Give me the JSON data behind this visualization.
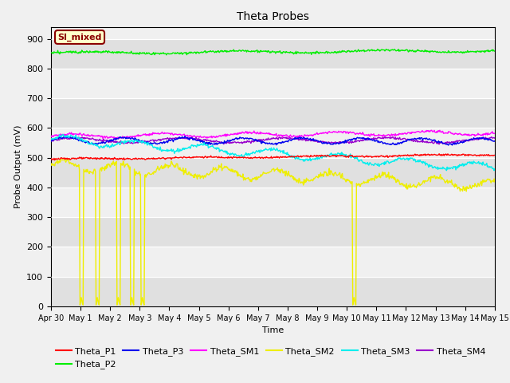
{
  "title": "Theta Probes",
  "xlabel": "Time",
  "ylabel": "Probe Output (mV)",
  "ylim": [
    0,
    940
  ],
  "yticks": [
    0,
    100,
    200,
    300,
    400,
    500,
    600,
    700,
    800,
    900
  ],
  "x_labels": [
    "Apr 30",
    "May 1",
    "May 2",
    "May 3",
    "May 4",
    "May 5",
    "May 6",
    "May 7",
    "May 8",
    "May 9",
    "May 10",
    "May 11",
    "May 12",
    "May 13",
    "May 14",
    "May 15"
  ],
  "fig_bg": "#f0f0f0",
  "plot_bg": "#e8e8e8",
  "band_color1": "#e0e0e0",
  "band_color2": "#f0f0f0",
  "annotation_text": "SI_mixed",
  "annotation_color": "#8b0000",
  "annotation_bg": "#ffffcc",
  "colors": {
    "Theta_P1": "#ff0000",
    "Theta_P2": "#00ee00",
    "Theta_P3": "#0000ee",
    "Theta_SM1": "#ff00ff",
    "Theta_SM2": "#eeee00",
    "Theta_SM3": "#00eeee",
    "Theta_SM4": "#9900cc"
  }
}
